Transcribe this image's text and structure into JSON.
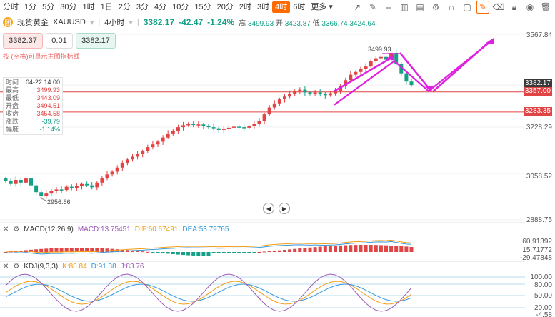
{
  "toolbar": {
    "timeframes": [
      "分时",
      "1分",
      "5分",
      "30分",
      "1时",
      "1日",
      "2分",
      "3分",
      "4分",
      "10分",
      "15分",
      "20分",
      "2时",
      "3时",
      "4时",
      "6时",
      "更多"
    ],
    "active_timeframe": "4时"
  },
  "symbol": {
    "logo": "团",
    "name": "现货黄金",
    "code": "XAUUSD",
    "interval": "4小时",
    "price": "3382.17",
    "change": "-42.47",
    "change_pct": "-1.24%",
    "high_label": "高",
    "high": "3499.93",
    "open_label": "开",
    "open": "3423.87",
    "low_label": "低",
    "low": "3366.74",
    "close_value": "3424.64"
  },
  "trade": {
    "sell": "3382.37",
    "lot": "0.01",
    "buy": "3382.17",
    "hint": "按 (空格)可显示主图指标线"
  },
  "info": [
    {
      "k": "时间",
      "v": "04-22 14:00",
      "c": "n"
    },
    {
      "k": "最高",
      "v": "3499.93",
      "c": "r"
    },
    {
      "k": "最低",
      "v": "3443.09",
      "c": "r"
    },
    {
      "k": "开盘",
      "v": "3494.51",
      "c": "r"
    },
    {
      "k": "收盘",
      "v": "3454.58",
      "c": "r"
    },
    {
      "k": "涨跌",
      "v": "-39.79",
      "c": "g"
    },
    {
      "k": "幅度",
      "v": "-1.14%",
      "c": "g"
    }
  ],
  "axis": {
    "labels": [
      "3567.84",
      "3382.17",
      "3357.00",
      "3283.35",
      "3228.29",
      "3058.52",
      "2888.75"
    ],
    "current_price": "3382.17",
    "line1": "3357.00",
    "line2": "3283.35"
  },
  "annotations": {
    "peak": "3499.93",
    "low": "2956.66"
  },
  "macd": {
    "label": "MACD(12,26,9)",
    "macd": "MACD:13.75451",
    "dif": "DIF:60.67491",
    "dea": "DEA:53.79765",
    "axis": [
      "60.91392",
      "15.71772",
      "-29.47848"
    ]
  },
  "kdj": {
    "label": "KDJ(9,3,3)",
    "k": "K:88.84",
    "d": "D:91.38",
    "j": "J:83.76",
    "axis": [
      "100.00",
      "80.00",
      "50.00",
      "20.00",
      "-4.58"
    ]
  },
  "colors": {
    "up": "#e04444",
    "down": "#14a085",
    "accent": "#ff6a00",
    "arrow": "#e020e0"
  }
}
